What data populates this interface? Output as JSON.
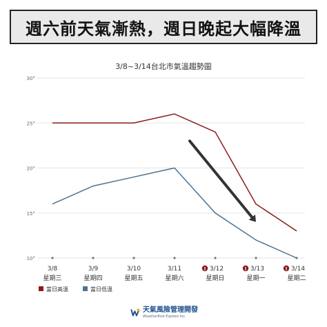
{
  "banner": {
    "title": "週六前天氣漸熱，週日晚起大幅降溫"
  },
  "chart_data": {
    "type": "line",
    "title": "3/8~3/14台北市氣溫趨勢圖",
    "categories": [
      "3/8",
      "3/9",
      "3/10",
      "3/11",
      "3/12",
      "3/13",
      "3/14"
    ],
    "weekdays": [
      "星期三",
      "星期四",
      "星期五",
      "星期六",
      "星期日",
      "星期一",
      "星期二"
    ],
    "alert_days": [
      "3/12",
      "3/13",
      "3/14"
    ],
    "series": [
      {
        "name": "當日高溫",
        "values": [
          25,
          25,
          25,
          26,
          24,
          16,
          13
        ],
        "color": "#8b1a1a"
      },
      {
        "name": "當日低溫",
        "values": [
          16,
          18,
          19,
          20,
          15,
          12,
          10
        ],
        "color": "#4c7393"
      }
    ],
    "ylim": [
      10,
      30
    ],
    "yticks": [
      "10°",
      "15°",
      "20°",
      "25°",
      "30°"
    ],
    "grid": true,
    "legend": "bottom-left",
    "trend_arrow": {
      "from": {
        "x": "3/11",
        "y": 23
      },
      "to": {
        "x": "3/13",
        "y": 14
      },
      "color": "#333333"
    }
  },
  "footer": {
    "logo_main": "天氣風險管理開發",
    "logo_sub": "WeatherRisk Explore Inc."
  }
}
